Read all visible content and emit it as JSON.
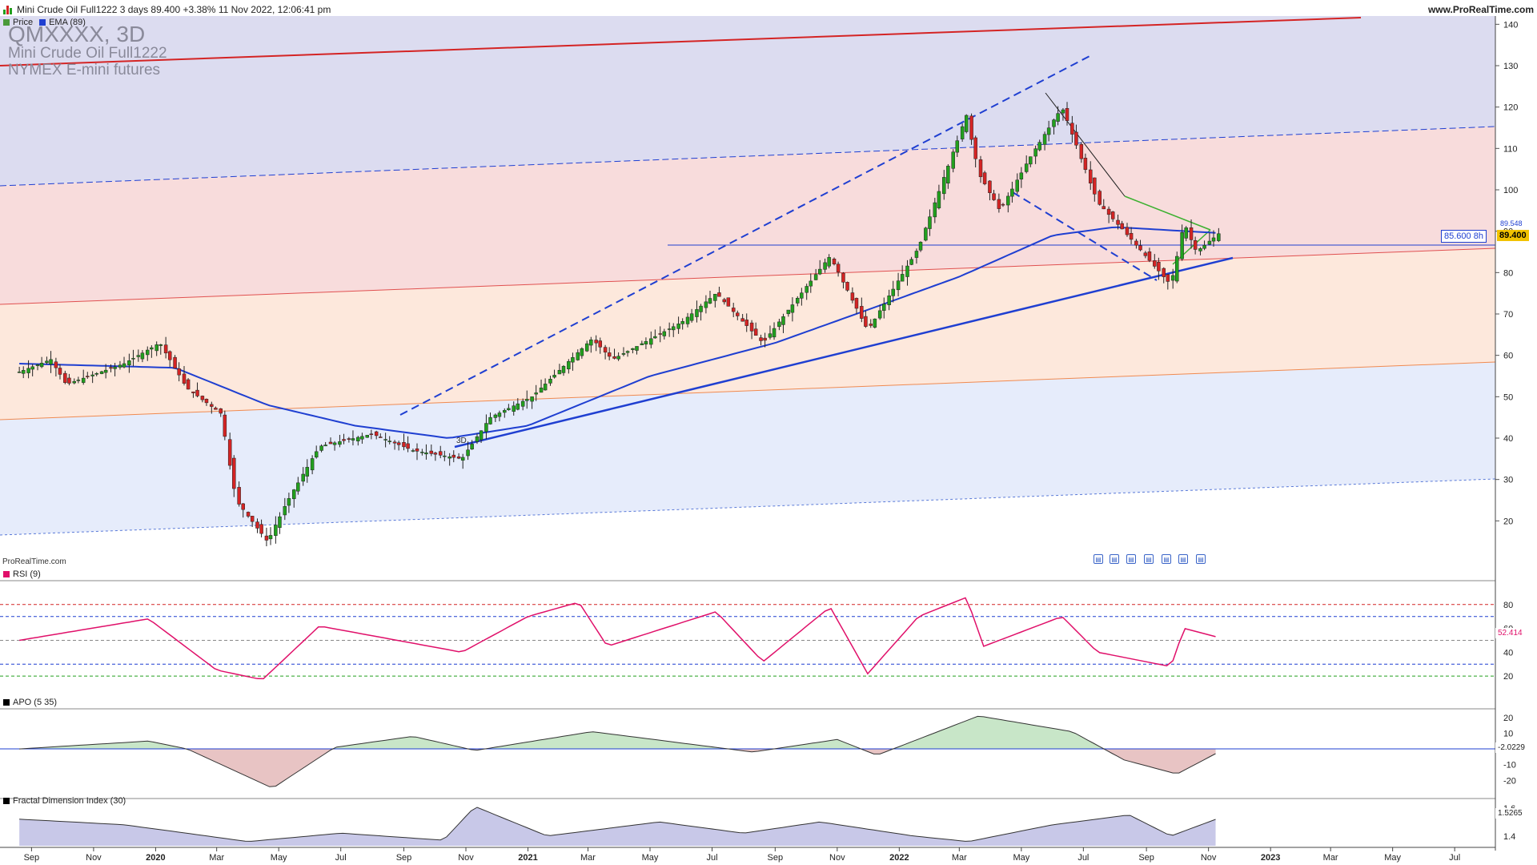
{
  "header": {
    "title": "Mini Crude Oil Full1222 3 days 89.400 +3.38% 11 Nov 2022, 12:06:41 pm",
    "site": "www.ProRealTime.com"
  },
  "price_panel": {
    "legend": [
      {
        "label": "Price",
        "color": "#4a9a3a"
      },
      {
        "label": "EMA (89)",
        "color": "#1f3fd1"
      }
    ],
    "watermark_symbol": "QMXXXX, 3D",
    "watermark_name": "Mini Crude Oil Full1222",
    "watermark_desc": "NYMEX E-mini futures",
    "brand": "ProRealTime.com",
    "timeframe_label": "3D",
    "y_ticks": [
      "140",
      "130",
      "120",
      "110",
      "100",
      "90",
      "80",
      "70",
      "60",
      "50",
      "40",
      "30",
      "20"
    ],
    "level_tag": "85.600 8h",
    "price_tag": "89.400",
    "ema_tag": "89.548"
  },
  "rsi_panel": {
    "legend": "RSI (9)",
    "y_ticks": [
      "80",
      "60",
      "40",
      "20"
    ],
    "value_tag": "52.414"
  },
  "apo_panel": {
    "legend": "APO (5 35)",
    "y_ticks": [
      "20",
      "10",
      "-10",
      "-20"
    ],
    "value_tag": "-2.0229"
  },
  "fdi_panel": {
    "legend": "Fractal Dimension Index (30)",
    "y_ticks": [
      "1.6",
      "1.4"
    ],
    "value_tag": "1.5265"
  },
  "x_axis": {
    "labels": [
      "Sep",
      "Nov",
      "2020",
      "Mar",
      "May",
      "Jul",
      "Sep",
      "Nov",
      "2021",
      "Mar",
      "May",
      "Jul",
      "Sep",
      "Nov",
      "2022",
      "Mar",
      "May",
      "Jul",
      "Sep",
      "Nov",
      "2023",
      "Mar",
      "May",
      "Jul"
    ]
  },
  "colors": {
    "up": "#22a01e",
    "down": "#d42424",
    "ema": "#1f3fd1",
    "rsi": "#e0106a",
    "band_top": "#dcdcf0",
    "band_mid": "#f8dcdc",
    "band_low": "#fde8dc",
    "band_bottom": "#e6ecfb"
  },
  "chart_data": {
    "type": "candlestick",
    "title": "Mini Crude Oil Full1222",
    "timeframe": "3 days",
    "last_price": 89.4,
    "change_pct": 3.38,
    "ylim": [
      10,
      142
    ],
    "ema_period": 89,
    "ema_last": 89.548,
    "horizontal_level": 85.6,
    "price_anchors": [
      {
        "t": "2019-08-20",
        "p": 56
      },
      {
        "t": "2019-09-20",
        "p": 59
      },
      {
        "t": "2019-10-05",
        "p": 53
      },
      {
        "t": "2019-12-01",
        "p": 58
      },
      {
        "t": "2020-01-05",
        "p": 63
      },
      {
        "t": "2020-02-01",
        "p": 52
      },
      {
        "t": "2020-03-05",
        "p": 46
      },
      {
        "t": "2020-03-20",
        "p": 25
      },
      {
        "t": "2020-04-20",
        "p": 15
      },
      {
        "t": "2020-05-10",
        "p": 25
      },
      {
        "t": "2020-06-10",
        "p": 38
      },
      {
        "t": "2020-08-01",
        "p": 41
      },
      {
        "t": "2020-09-10",
        "p": 37
      },
      {
        "t": "2020-10-28",
        "p": 35
      },
      {
        "t": "2020-11-25",
        "p": 45
      },
      {
        "t": "2021-01-05",
        "p": 50
      },
      {
        "t": "2021-03-05",
        "p": 64
      },
      {
        "t": "2021-03-25",
        "p": 59
      },
      {
        "t": "2021-06-01",
        "p": 68
      },
      {
        "t": "2021-07-05",
        "p": 75
      },
      {
        "t": "2021-08-20",
        "p": 63
      },
      {
        "t": "2021-10-25",
        "p": 84
      },
      {
        "t": "2021-12-01",
        "p": 66
      },
      {
        "t": "2022-01-20",
        "p": 86
      },
      {
        "t": "2022-03-08",
        "p": 118
      },
      {
        "t": "2022-03-20",
        "p": 104
      },
      {
        "t": "2022-04-10",
        "p": 95
      },
      {
        "t": "2022-05-10",
        "p": 108
      },
      {
        "t": "2022-06-10",
        "p": 120
      },
      {
        "t": "2022-07-15",
        "p": 97
      },
      {
        "t": "2022-08-10",
        "p": 90
      },
      {
        "t": "2022-09-25",
        "p": 77
      },
      {
        "t": "2022-10-08",
        "p": 92
      },
      {
        "t": "2022-10-20",
        "p": 85
      },
      {
        "t": "2022-11-11",
        "p": 89.4
      }
    ],
    "ema_anchors": [
      {
        "t": "2019-08-20",
        "p": 58
      },
      {
        "t": "2020-01-20",
        "p": 57
      },
      {
        "t": "2020-04-20",
        "p": 48
      },
      {
        "t": "2020-07-15",
        "p": 43
      },
      {
        "t": "2020-10-15",
        "p": 40
      },
      {
        "t": "2021-01-01",
        "p": 43
      },
      {
        "t": "2021-05-01",
        "p": 55
      },
      {
        "t": "2021-09-01",
        "p": 63
      },
      {
        "t": "2021-12-01",
        "p": 71
      },
      {
        "t": "2022-03-01",
        "p": 79
      },
      {
        "t": "2022-06-01",
        "p": 89
      },
      {
        "t": "2022-08-01",
        "p": 91
      },
      {
        "t": "2022-11-11",
        "p": 89.548
      }
    ],
    "rsi": {
      "period": 9,
      "last": 52.414,
      "levels": [
        80,
        70,
        30,
        20
      ],
      "anchors": [
        {
          "t": "2019-08-20",
          "p": 50
        },
        {
          "t": "2019-12-25",
          "p": 68
        },
        {
          "t": "2020-03-01",
          "p": 25
        },
        {
          "t": "2020-04-15",
          "p": 17
        },
        {
          "t": "2020-06-10",
          "p": 62
        },
        {
          "t": "2020-10-28",
          "p": 40
        },
        {
          "t": "2021-01-01",
          "p": 70
        },
        {
          "t": "2021-02-20",
          "p": 82
        },
        {
          "t": "2021-03-20",
          "p": 45
        },
        {
          "t": "2021-07-05",
          "p": 74
        },
        {
          "t": "2021-08-20",
          "p": 32
        },
        {
          "t": "2021-10-25",
          "p": 78
        },
        {
          "t": "2021-12-01",
          "p": 22
        },
        {
          "t": "2022-01-20",
          "p": 70
        },
        {
          "t": "2022-03-08",
          "p": 86
        },
        {
          "t": "2022-03-25",
          "p": 45
        },
        {
          "t": "2022-06-10",
          "p": 70
        },
        {
          "t": "2022-07-15",
          "p": 40
        },
        {
          "t": "2022-09-25",
          "p": 28
        },
        {
          "t": "2022-10-08",
          "p": 60
        },
        {
          "t": "2022-11-11",
          "p": 52.414
        }
      ]
    },
    "apo": {
      "fast": 5,
      "slow": 35,
      "last": -2.0229,
      "anchors": [
        {
          "t": "2019-08-20",
          "p": 0
        },
        {
          "t": "2019-12-25",
          "p": 5
        },
        {
          "t": "2020-02-01",
          "p": 0
        },
        {
          "t": "2020-04-25",
          "p": -25
        },
        {
          "t": "2020-06-25",
          "p": 1
        },
        {
          "t": "2020-09-10",
          "p": 8
        },
        {
          "t": "2020-11-10",
          "p": -1
        },
        {
          "t": "2021-03-05",
          "p": 11
        },
        {
          "t": "2021-08-10",
          "p": -2
        },
        {
          "t": "2021-11-01",
          "p": 6
        },
        {
          "t": "2021-12-10",
          "p": -4
        },
        {
          "t": "2022-03-20",
          "p": 21
        },
        {
          "t": "2022-06-20",
          "p": 11
        },
        {
          "t": "2022-08-10",
          "p": -7
        },
        {
          "t": "2022-10-01",
          "p": -16
        },
        {
          "t": "2022-11-11",
          "p": -2.0229
        }
      ]
    },
    "fdi": {
      "period": 30,
      "last": 1.5265,
      "anchors": [
        {
          "t": "2019-08-20",
          "p": 1.52
        },
        {
          "t": "2019-12-01",
          "p": 1.48
        },
        {
          "t": "2020-04-01",
          "p": 1.36
        },
        {
          "t": "2020-07-01",
          "p": 1.42
        },
        {
          "t": "2020-10-10",
          "p": 1.37
        },
        {
          "t": "2020-11-10",
          "p": 1.61
        },
        {
          "t": "2021-01-20",
          "p": 1.4
        },
        {
          "t": "2021-05-10",
          "p": 1.5
        },
        {
          "t": "2021-08-01",
          "p": 1.42
        },
        {
          "t": "2021-10-15",
          "p": 1.5
        },
        {
          "t": "2022-01-15",
          "p": 1.4
        },
        {
          "t": "2022-03-10",
          "p": 1.36
        },
        {
          "t": "2022-06-01",
          "p": 1.48
        },
        {
          "t": "2022-08-15",
          "p": 1.55
        },
        {
          "t": "2022-09-25",
          "p": 1.4
        },
        {
          "t": "2022-11-11",
          "p": 1.5265
        }
      ]
    }
  }
}
